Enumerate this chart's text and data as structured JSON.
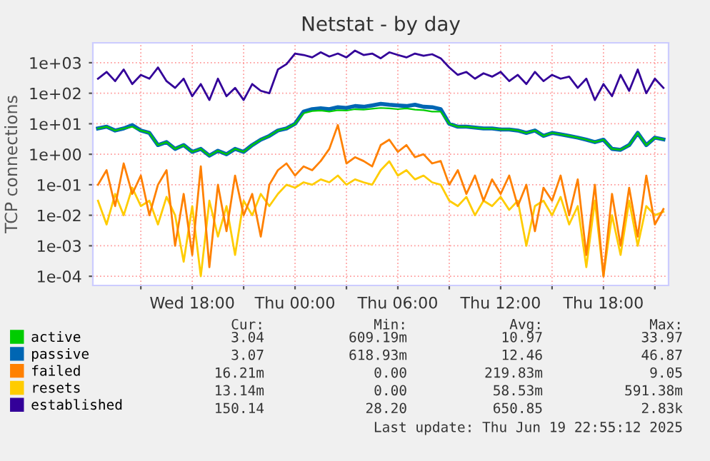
{
  "chart_data": {
    "type": "line",
    "title": "Netstat - by day",
    "ylabel": "TCP connections",
    "x": [
      "2025-06-18T12:30",
      "2025-06-18T13:00",
      "2025-06-18T13:30",
      "2025-06-18T14:00",
      "2025-06-18T14:30",
      "2025-06-18T15:00",
      "2025-06-18T15:30",
      "2025-06-18T16:00",
      "2025-06-18T16:30",
      "2025-06-18T17:00",
      "2025-06-18T17:30",
      "2025-06-18T18:00",
      "2025-06-18T18:30",
      "2025-06-18T19:00",
      "2025-06-18T19:30",
      "2025-06-18T20:00",
      "2025-06-18T20:30",
      "2025-06-18T21:00",
      "2025-06-18T21:30",
      "2025-06-18T22:00",
      "2025-06-18T22:30",
      "2025-06-18T23:00",
      "2025-06-18T23:30",
      "2025-06-19T00:00",
      "2025-06-19T00:30",
      "2025-06-19T01:00",
      "2025-06-19T01:30",
      "2025-06-19T02:00",
      "2025-06-19T02:30",
      "2025-06-19T03:00",
      "2025-06-19T03:30",
      "2025-06-19T04:00",
      "2025-06-19T04:30",
      "2025-06-19T05:00",
      "2025-06-19T05:30",
      "2025-06-19T06:00",
      "2025-06-19T06:30",
      "2025-06-19T07:00",
      "2025-06-19T07:30",
      "2025-06-19T08:00",
      "2025-06-19T08:30",
      "2025-06-19T09:00",
      "2025-06-19T09:30",
      "2025-06-19T10:00",
      "2025-06-19T10:30",
      "2025-06-19T11:00",
      "2025-06-19T11:30",
      "2025-06-19T12:00",
      "2025-06-19T12:30",
      "2025-06-19T13:00",
      "2025-06-19T13:30",
      "2025-06-19T14:00",
      "2025-06-19T14:30",
      "2025-06-19T15:00",
      "2025-06-19T15:30",
      "2025-06-19T16:00",
      "2025-06-19T16:30",
      "2025-06-19T17:00",
      "2025-06-19T17:30",
      "2025-06-19T18:00",
      "2025-06-19T18:30",
      "2025-06-19T19:00",
      "2025-06-19T19:30",
      "2025-06-19T20:00",
      "2025-06-19T20:30",
      "2025-06-19T21:00",
      "2025-06-19T21:30"
    ],
    "series": [
      {
        "name": "active",
        "color": "#00cc00",
        "values": [
          7,
          8,
          6,
          7,
          8,
          6,
          5,
          2,
          2.5,
          1.5,
          2,
          1.2,
          1.5,
          0.9,
          1.3,
          1,
          1.5,
          1.2,
          2,
          3,
          4,
          6,
          7,
          10,
          22,
          26,
          27,
          25,
          28,
          27,
          30,
          29,
          31,
          33,
          32,
          30,
          32,
          29,
          28,
          25,
          25,
          10,
          8,
          8,
          7.5,
          7,
          7,
          6.5,
          6.5,
          6,
          5,
          6,
          4,
          5,
          4.5,
          4,
          3.5,
          3,
          2.5,
          3,
          1.5,
          1.4,
          2,
          5,
          2,
          3.5,
          3.04
        ]
      },
      {
        "name": "passive",
        "color": "#0066b3",
        "values": [
          7,
          8,
          6,
          7,
          9,
          6,
          5,
          2,
          2.5,
          1.5,
          2,
          1.2,
          1.5,
          0.9,
          1.3,
          1,
          1.5,
          1.2,
          2,
          3,
          4,
          6,
          7,
          10,
          25,
          30,
          32,
          30,
          35,
          33,
          38,
          36,
          40,
          45,
          42,
          40,
          38,
          42,
          36,
          35,
          30,
          10,
          8,
          8,
          7.5,
          7,
          7,
          6.5,
          6.5,
          6,
          5,
          6,
          4,
          5,
          4.5,
          4,
          3.5,
          3,
          2.5,
          3,
          1.5,
          1.4,
          2,
          5,
          2,
          3.5,
          3.07
        ]
      },
      {
        "name": "failed",
        "color": "#ff8000",
        "values": [
          0.1,
          0.3,
          0.02,
          0.5,
          0.05,
          0.2,
          0.01,
          0.1,
          0.3,
          0.001,
          0.05,
          0.0005,
          0.4,
          0.0002,
          0.1,
          0.003,
          0.2,
          0.01,
          0.05,
          0.002,
          0.1,
          0.3,
          0.5,
          0.2,
          0.4,
          0.3,
          0.6,
          1.5,
          9.05,
          0.5,
          0.8,
          0.6,
          0.4,
          2,
          3,
          1.2,
          2,
          0.8,
          1,
          0.5,
          0.6,
          0.1,
          0.3,
          0.05,
          0.2,
          0.03,
          0.15,
          0.05,
          0.2,
          0.02,
          0.1,
          0.003,
          0.08,
          0.03,
          0.2,
          0.01,
          0.15,
          0.0005,
          0.1,
          0.0001,
          0.05,
          0.001,
          0.08,
          0.002,
          0.2,
          0.005,
          0.016
        ]
      },
      {
        "name": "resets",
        "color": "#ffcc00",
        "values": [
          0.03,
          0.005,
          0.05,
          0.01,
          0.08,
          0.02,
          0.03,
          0.005,
          0.04,
          0.01,
          0.0003,
          0.02,
          0.0001,
          0.03,
          0.002,
          0.02,
          0.0005,
          0.03,
          0.01,
          0.05,
          0.02,
          0.05,
          0.1,
          0.08,
          0.12,
          0.1,
          0.15,
          0.12,
          0.2,
          0.1,
          0.15,
          0.12,
          0.1,
          0.3,
          0.59,
          0.2,
          0.3,
          0.15,
          0.2,
          0.12,
          0.1,
          0.03,
          0.02,
          0.04,
          0.01,
          0.03,
          0.02,
          0.04,
          0.015,
          0.03,
          0.001,
          0.02,
          0.03,
          0.01,
          0.04,
          0.005,
          0.02,
          0.0002,
          0.03,
          0.0001,
          0.01,
          0.0005,
          0.03,
          0.001,
          0.02,
          0.01,
          0.013
        ]
      },
      {
        "name": "established",
        "color": "#330099",
        "values": [
          300,
          500,
          250,
          600,
          200,
          400,
          300,
          700,
          250,
          150,
          300,
          80,
          200,
          60,
          300,
          80,
          150,
          60,
          200,
          120,
          100,
          600,
          900,
          2000,
          1800,
          1500,
          2200,
          1600,
          2000,
          1500,
          2500,
          1800,
          2000,
          1400,
          2200,
          1800,
          1500,
          2000,
          1700,
          1900,
          1400,
          700,
          400,
          500,
          300,
          450,
          350,
          500,
          250,
          400,
          200,
          500,
          250,
          400,
          300,
          350,
          150,
          300,
          60,
          200,
          80,
          400,
          120,
          600,
          100,
          300,
          150
        ]
      }
    ],
    "log": "y",
    "xlim": [
      "2025-06-18T12:12",
      "2025-06-19T21:48"
    ],
    "ylim": [
      5e-05,
      4500
    ],
    "xticks": [
      {
        "value": "2025-06-18T15:00",
        "label": null
      },
      {
        "value": "2025-06-18T18:00",
        "label": "Wed 18:00"
      },
      {
        "value": "2025-06-18T21:00",
        "label": null
      },
      {
        "value": "2025-06-19T00:00",
        "label": "Thu 00:00"
      },
      {
        "value": "2025-06-19T03:00",
        "label": null
      },
      {
        "value": "2025-06-19T06:00",
        "label": "Thu 06:00"
      },
      {
        "value": "2025-06-19T09:00",
        "label": null
      },
      {
        "value": "2025-06-19T12:00",
        "label": "Thu 12:00"
      },
      {
        "value": "2025-06-19T15:00",
        "label": null
      },
      {
        "value": "2025-06-19T18:00",
        "label": "Thu 18:00"
      },
      {
        "value": "2025-06-19T21:00",
        "label": null
      }
    ],
    "yticks": [
      {
        "value": 0.0001,
        "label": "1e-04"
      },
      {
        "value": 0.001,
        "label": "1e-03"
      },
      {
        "value": 0.01,
        "label": "1e-02"
      },
      {
        "value": 0.1,
        "label": "1e-01"
      },
      {
        "value": 1,
        "label": "1e+00"
      },
      {
        "value": 10,
        "label": "1e+01"
      },
      {
        "value": 100,
        "label": "1e+02"
      },
      {
        "value": 1000,
        "label": "1e+03"
      }
    ],
    "grid": true,
    "legend": "bottom",
    "marker": "none",
    "line_style": "solid",
    "annotations": [
      "Cur:",
      "Min:",
      "Avg:",
      "Max:",
      "3.04",
      "609.19m",
      "10.97",
      "33.97",
      "3.07",
      "618.93m",
      "12.46",
      "46.87",
      "16.21m",
      "0.00",
      "219.83m",
      "9.05",
      "13.14m",
      "0.00",
      "58.53m",
      "591.38m",
      "150.14",
      "28.20",
      "650.85",
      "2.83k",
      "Last update: Thu Jun 19 22:55:12 2025"
    ]
  }
}
